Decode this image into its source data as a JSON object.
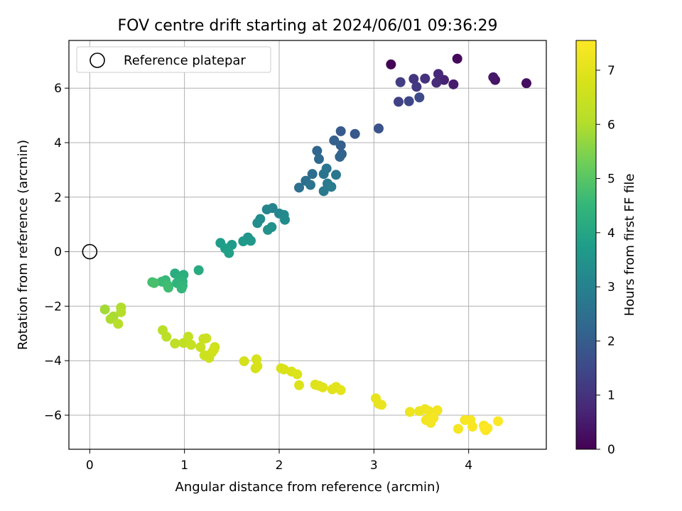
{
  "chart_data": {
    "type": "scatter",
    "title": "FOV centre drift starting at 2024/06/01 09:36:29",
    "xlabel": "Angular distance from reference (arcmin)",
    "ylabel": "Rotation from reference (arcmin)",
    "xlim": [
      -0.22,
      4.82
    ],
    "ylim": [
      -7.25,
      7.75
    ],
    "xticks": [
      0,
      1,
      2,
      3,
      4
    ],
    "yticks": [
      -6,
      -4,
      -2,
      0,
      2,
      4,
      6
    ],
    "grid": true,
    "legend": {
      "placement": "top-left",
      "label": "Reference platepar"
    },
    "reference_point": {
      "x": 0,
      "y": 0
    },
    "colorbar": {
      "label": "Hours from first FF file",
      "range": [
        0,
        7.55
      ],
      "ticks": [
        0,
        1,
        2,
        3,
        4,
        5,
        6,
        7
      ],
      "colormap": "viridis"
    },
    "points": [
      [
        3.18,
        6.87,
        0.05
      ],
      [
        3.88,
        7.08,
        0.15
      ],
      [
        4.61,
        6.18,
        0.25
      ],
      [
        4.28,
        6.3,
        0.35
      ],
      [
        4.26,
        6.4,
        0.45
      ],
      [
        3.84,
        6.14,
        0.55
      ],
      [
        3.74,
        6.3,
        0.65
      ],
      [
        3.68,
        6.52,
        0.75
      ],
      [
        3.66,
        6.2,
        0.85
      ],
      [
        3.54,
        6.35,
        0.95
      ],
      [
        3.42,
        6.34,
        1.05
      ],
      [
        3.45,
        6.05,
        1.15
      ],
      [
        3.28,
        6.22,
        1.25
      ],
      [
        3.26,
        5.5,
        1.35
      ],
      [
        3.37,
        5.52,
        1.45
      ],
      [
        3.48,
        5.66,
        1.55
      ],
      [
        3.05,
        4.52,
        1.75
      ],
      [
        2.8,
        4.32,
        1.85
      ],
      [
        2.65,
        4.42,
        1.95
      ],
      [
        2.65,
        3.9,
        2.05
      ],
      [
        2.58,
        4.08,
        2.1
      ],
      [
        2.66,
        3.58,
        2.15
      ],
      [
        2.64,
        3.48,
        2.2
      ],
      [
        2.4,
        3.7,
        2.25
      ],
      [
        2.42,
        3.4,
        2.3
      ],
      [
        2.35,
        2.85,
        2.4
      ],
      [
        2.28,
        2.6,
        2.45
      ],
      [
        2.21,
        2.35,
        2.5
      ],
      [
        2.33,
        2.45,
        2.55
      ],
      [
        2.47,
        2.85,
        2.6
      ],
      [
        2.5,
        3.05,
        2.65
      ],
      [
        2.6,
        2.82,
        2.7
      ],
      [
        2.47,
        2.22,
        2.75
      ],
      [
        2.51,
        2.5,
        2.8
      ],
      [
        2.55,
        2.38,
        2.85
      ],
      [
        1.93,
        1.6,
        3.05
      ],
      [
        1.87,
        1.55,
        3.1
      ],
      [
        2.0,
        1.4,
        3.15
      ],
      [
        2.05,
        1.35,
        3.2
      ],
      [
        2.06,
        1.17,
        3.25
      ],
      [
        1.8,
        1.2,
        3.3
      ],
      [
        1.77,
        1.05,
        3.35
      ],
      [
        1.92,
        0.9,
        3.4
      ],
      [
        1.88,
        0.8,
        3.45
      ],
      [
        1.67,
        0.52,
        3.55
      ],
      [
        1.7,
        0.4,
        3.6
      ],
      [
        1.62,
        0.38,
        3.65
      ],
      [
        1.5,
        0.25,
        3.7
      ],
      [
        1.38,
        0.32,
        3.75
      ],
      [
        1.43,
        0.12,
        3.8
      ],
      [
        1.47,
        -0.05,
        3.85
      ],
      [
        1.15,
        -0.68,
        4.15
      ],
      [
        0.9,
        -0.8,
        4.2
      ],
      [
        0.99,
        -0.85,
        4.25
      ],
      [
        0.95,
        -0.95,
        4.3
      ],
      [
        0.98,
        -1.1,
        4.35
      ],
      [
        0.92,
        -1.15,
        4.4
      ],
      [
        0.98,
        -1.25,
        4.45
      ],
      [
        0.97,
        -1.35,
        4.5
      ],
      [
        0.8,
        -1.05,
        4.55
      ],
      [
        0.76,
        -1.1,
        4.6
      ],
      [
        0.82,
        -1.22,
        4.65
      ],
      [
        0.83,
        -1.32,
        4.7
      ],
      [
        0.66,
        -1.12,
        4.75
      ],
      [
        0.68,
        -1.15,
        4.8
      ],
      [
        0.16,
        -2.12,
        5.85
      ],
      [
        0.25,
        -2.38,
        5.9
      ],
      [
        0.22,
        -2.47,
        5.95
      ],
      [
        0.33,
        -2.05,
        6.0
      ],
      [
        0.33,
        -2.22,
        6.05
      ],
      [
        0.3,
        -2.65,
        6.1
      ],
      [
        0.77,
        -2.88,
        6.15
      ],
      [
        0.81,
        -3.12,
        6.2
      ],
      [
        0.9,
        -3.37,
        6.25
      ],
      [
        0.99,
        -3.35,
        6.3
      ],
      [
        1.04,
        -3.12,
        6.35
      ],
      [
        1.07,
        -3.42,
        6.4
      ],
      [
        1.17,
        -3.5,
        6.45
      ],
      [
        1.2,
        -3.2,
        6.5
      ],
      [
        1.23,
        -3.18,
        6.5
      ],
      [
        1.21,
        -3.8,
        6.55
      ],
      [
        1.26,
        -3.9,
        6.55
      ],
      [
        1.29,
        -3.7,
        6.6
      ],
      [
        1.32,
        -3.5,
        6.6
      ],
      [
        1.31,
        -3.6,
        6.65
      ],
      [
        1.63,
        -4.02,
        6.7
      ],
      [
        1.75,
        -4.28,
        6.72
      ],
      [
        1.76,
        -3.95,
        6.75
      ],
      [
        1.77,
        -4.2,
        6.78
      ],
      [
        2.02,
        -4.28,
        6.8
      ],
      [
        2.05,
        -4.32,
        6.82
      ],
      [
        2.13,
        -4.4,
        6.85
      ],
      [
        2.19,
        -4.5,
        6.88
      ],
      [
        2.21,
        -4.9,
        6.9
      ],
      [
        2.38,
        -4.88,
        6.92
      ],
      [
        2.42,
        -4.92,
        6.95
      ],
      [
        2.46,
        -4.98,
        6.97
      ],
      [
        2.56,
        -5.05,
        7.0
      ],
      [
        2.6,
        -4.96,
        7.02
      ],
      [
        2.65,
        -5.08,
        7.05
      ],
      [
        3.02,
        -5.38,
        7.1
      ],
      [
        3.05,
        -5.58,
        7.12
      ],
      [
        3.08,
        -5.62,
        7.15
      ],
      [
        3.38,
        -5.88,
        7.2
      ],
      [
        3.48,
        -5.85,
        7.22
      ],
      [
        3.54,
        -5.78,
        7.25
      ],
      [
        3.58,
        -5.85,
        7.27
      ],
      [
        3.62,
        -5.95,
        7.3
      ],
      [
        3.67,
        -5.82,
        7.32
      ],
      [
        3.55,
        -6.18,
        7.33
      ],
      [
        3.6,
        -6.28,
        7.35
      ],
      [
        3.63,
        -6.1,
        7.36
      ],
      [
        3.89,
        -6.5,
        7.38
      ],
      [
        3.96,
        -6.18,
        7.4
      ],
      [
        4.02,
        -6.18,
        7.42
      ],
      [
        4.04,
        -6.42,
        7.44
      ],
      [
        4.16,
        -6.38,
        7.46
      ],
      [
        4.18,
        -6.55,
        7.48
      ],
      [
        4.2,
        -6.48,
        7.5
      ],
      [
        4.31,
        -6.22,
        7.52
      ],
      [
        4.17,
        -6.5,
        7.54
      ]
    ]
  }
}
